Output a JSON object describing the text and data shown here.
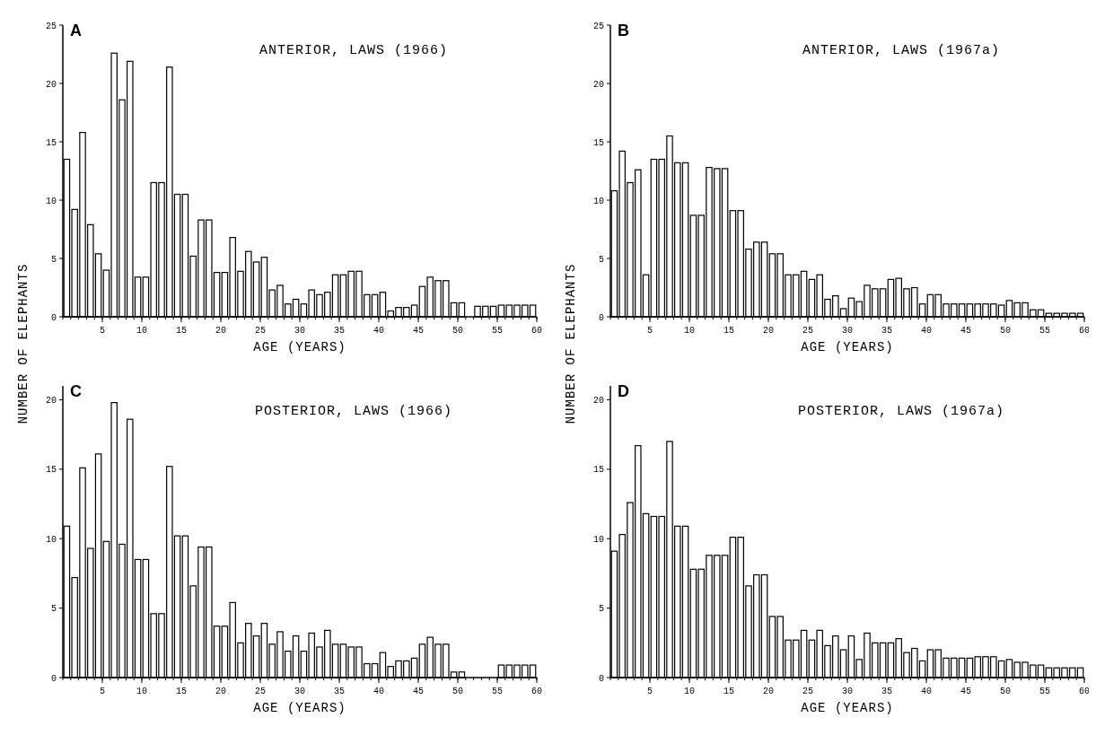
{
  "chart_data": [
    {
      "type": "histogram",
      "title": "ANTERIOR, LAWS (1966)",
      "annotations": [
        "A"
      ],
      "xlabel": "AGE (YEARS)",
      "ylabel": "NUMBER OF ELEPHANTS",
      "color": "#ffffff",
      "bins": [
        0,
        1,
        2,
        3,
        4,
        5,
        6,
        7,
        8,
        9,
        10,
        11,
        12,
        13,
        14,
        15,
        16,
        17,
        18,
        19,
        20,
        21,
        22,
        23,
        24,
        25,
        26,
        27,
        28,
        29,
        30,
        31,
        32,
        33,
        34,
        35,
        36,
        37,
        38,
        39,
        40,
        41,
        42,
        43,
        44,
        45,
        46,
        47,
        48,
        49,
        50,
        51,
        52,
        53,
        54,
        55,
        56,
        57,
        58,
        59,
        60
      ],
      "values": [
        13.5,
        9.2,
        15.8,
        7.9,
        5.4,
        4.0,
        22.6,
        18.6,
        21.9,
        3.4,
        3.4,
        11.5,
        11.5,
        21.4,
        10.5,
        10.5,
        5.2,
        8.3,
        8.3,
        3.8,
        3.8,
        6.8,
        3.9,
        5.6,
        4.7,
        5.1,
        2.3,
        2.7,
        1.1,
        1.5,
        1.1,
        2.3,
        1.9,
        2.1,
        3.6,
        3.6,
        3.9,
        3.9,
        1.9,
        1.9,
        2.1,
        0.5,
        0.8,
        0.8,
        1.0,
        2.6,
        3.4,
        3.1,
        3.1,
        1.2,
        1.2,
        0,
        0.9,
        0.9,
        0.9,
        1.0,
        1.0,
        1.0,
        1.0,
        1.0
      ],
      "xlim": [
        0,
        60
      ],
      "ylim": [
        0,
        25
      ],
      "yticks": [
        0,
        5,
        10,
        15,
        20,
        25
      ],
      "xticks": [
        5,
        10,
        15,
        20,
        25,
        30,
        35,
        40,
        45,
        50,
        55,
        60
      ]
    },
    {
      "type": "histogram",
      "title": "ANTERIOR, LAWS (1967a)",
      "annotations": [
        "B"
      ],
      "xlabel": "AGE (YEARS)",
      "ylabel": "NUMBER OF ELEPHANTS",
      "color": "#ffffff",
      "bins": [
        0,
        1,
        2,
        3,
        4,
        5,
        6,
        7,
        8,
        9,
        10,
        11,
        12,
        13,
        14,
        15,
        16,
        17,
        18,
        19,
        20,
        21,
        22,
        23,
        24,
        25,
        26,
        27,
        28,
        29,
        30,
        31,
        32,
        33,
        34,
        35,
        36,
        37,
        38,
        39,
        40,
        41,
        42,
        43,
        44,
        45,
        46,
        47,
        48,
        49,
        50,
        51,
        52,
        53,
        54,
        55,
        56,
        57,
        58,
        59,
        60
      ],
      "values": [
        10.8,
        14.2,
        11.5,
        12.6,
        3.6,
        13.5,
        13.5,
        15.5,
        13.2,
        13.2,
        8.7,
        8.7,
        12.8,
        12.7,
        12.7,
        9.1,
        9.1,
        5.8,
        6.4,
        6.4,
        5.4,
        5.4,
        3.6,
        3.6,
        3.9,
        3.2,
        3.6,
        1.5,
        1.8,
        0.7,
        1.6,
        1.3,
        2.7,
        2.4,
        2.4,
        3.2,
        3.3,
        2.4,
        2.5,
        1.1,
        1.9,
        1.9,
        1.1,
        1.1,
        1.1,
        1.1,
        1.1,
        1.1,
        1.1,
        1.0,
        1.4,
        1.2,
        1.2,
        0.6,
        0.6,
        0.3,
        0.3,
        0.3,
        0.3,
        0.3
      ],
      "xlim": [
        0,
        60
      ],
      "ylim": [
        0,
        25
      ],
      "yticks": [
        0,
        5,
        10,
        15,
        20,
        25
      ],
      "xticks": [
        5,
        10,
        15,
        20,
        25,
        30,
        35,
        40,
        45,
        50,
        55,
        60
      ]
    },
    {
      "type": "histogram",
      "title": "POSTERIOR, LAWS (1966)",
      "annotations": [
        "C"
      ],
      "xlabel": "AGE (YEARS)",
      "color": "#ffffff",
      "bins": [
        0,
        1,
        2,
        3,
        4,
        5,
        6,
        7,
        8,
        9,
        10,
        11,
        12,
        13,
        14,
        15,
        16,
        17,
        18,
        19,
        20,
        21,
        22,
        23,
        24,
        25,
        26,
        27,
        28,
        29,
        30,
        31,
        32,
        33,
        34,
        35,
        36,
        37,
        38,
        39,
        40,
        41,
        42,
        43,
        44,
        45,
        46,
        47,
        48,
        49,
        50,
        51,
        52,
        53,
        54,
        55,
        56,
        57,
        58,
        59,
        60
      ],
      "values": [
        10.9,
        7.2,
        15.1,
        9.3,
        16.1,
        9.8,
        19.8,
        9.6,
        18.6,
        8.5,
        8.5,
        4.6,
        4.6,
        15.2,
        10.2,
        10.2,
        6.6,
        9.4,
        9.4,
        3.7,
        3.7,
        5.4,
        2.5,
        3.9,
        3.0,
        3.9,
        2.4,
        3.3,
        1.9,
        3.0,
        1.9,
        3.2,
        2.2,
        3.4,
        2.4,
        2.4,
        2.2,
        2.2,
        1.0,
        1.0,
        1.8,
        0.8,
        1.2,
        1.2,
        1.4,
        2.4,
        2.9,
        2.4,
        2.4,
        0.4,
        0.4,
        0,
        0,
        0,
        0,
        0.9,
        0.9,
        0.9,
        0.9,
        0.9
      ],
      "xlim": [
        0,
        60
      ],
      "ylim": [
        0,
        21
      ],
      "yticks": [
        0,
        5,
        10,
        15,
        20
      ],
      "xticks": [
        5,
        10,
        15,
        20,
        25,
        30,
        35,
        40,
        45,
        50,
        55,
        60
      ]
    },
    {
      "type": "histogram",
      "title": "POSTERIOR, LAWS (1967a)",
      "annotations": [
        "D"
      ],
      "xlabel": "AGE (YEARS)",
      "color": "#ffffff",
      "bins": [
        0,
        1,
        2,
        3,
        4,
        5,
        6,
        7,
        8,
        9,
        10,
        11,
        12,
        13,
        14,
        15,
        16,
        17,
        18,
        19,
        20,
        21,
        22,
        23,
        24,
        25,
        26,
        27,
        28,
        29,
        30,
        31,
        32,
        33,
        34,
        35,
        36,
        37,
        38,
        39,
        40,
        41,
        42,
        43,
        44,
        45,
        46,
        47,
        48,
        49,
        50,
        51,
        52,
        53,
        54,
        55,
        56,
        57,
        58,
        59,
        60
      ],
      "values": [
        9.1,
        10.3,
        12.6,
        16.7,
        11.8,
        11.6,
        11.6,
        17.0,
        10.9,
        10.9,
        7.8,
        7.8,
        8.8,
        8.8,
        8.8,
        10.1,
        10.1,
        6.6,
        7.4,
        7.4,
        4.4,
        4.4,
        2.7,
        2.7,
        3.4,
        2.7,
        3.4,
        2.3,
        3.0,
        2.0,
        3.0,
        1.3,
        3.2,
        2.5,
        2.5,
        2.5,
        2.8,
        1.8,
        2.1,
        1.2,
        2.0,
        2.0,
        1.4,
        1.4,
        1.4,
        1.4,
        1.5,
        1.5,
        1.5,
        1.2,
        1.3,
        1.1,
        1.1,
        0.9,
        0.9,
        0.7,
        0.7,
        0.7,
        0.7,
        0.7
      ],
      "xlim": [
        0,
        60
      ],
      "ylim": [
        0,
        21
      ],
      "yticks": [
        0,
        5,
        10,
        15,
        20
      ],
      "xticks": [
        5,
        10,
        15,
        20,
        25,
        30,
        35,
        40,
        45,
        50,
        55,
        60
      ]
    }
  ]
}
